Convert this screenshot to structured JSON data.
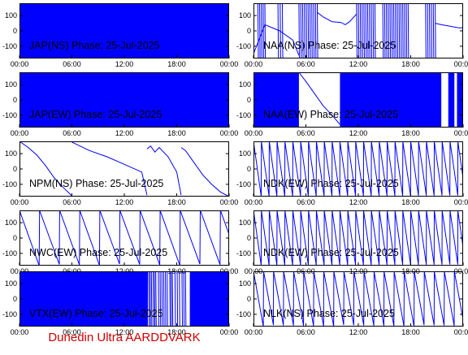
{
  "footer": "Dunedin Ultra AARDDVARK",
  "colors": {
    "trace": "#0000ff",
    "axis": "#000000",
    "footer": "#d00000"
  },
  "chart_data": [
    {
      "type": "line",
      "title": "JAP(NS) Phase: 25-Jul-2025",
      "x_ticks": [
        "00:00",
        "06:00",
        "12:00",
        "18:00",
        "00:00"
      ],
      "y_ticks": [
        "100",
        "0",
        "-100"
      ],
      "xlim_hours": [
        0,
        24
      ],
      "ylim": [
        -180,
        180
      ],
      "fill": "solid",
      "series": [
        {
          "x": [
            0,
            24
          ],
          "y": [
            0,
            0
          ]
        }
      ]
    },
    {
      "type": "line",
      "title": "NAA(NS) Phase: 25-Jul-2025",
      "x_ticks": [
        "00:00",
        "06:00",
        "12:00",
        "18:00",
        "00:00"
      ],
      "y_ticks": [
        "100",
        "0",
        "-100"
      ],
      "xlim_hours": [
        0,
        24
      ],
      "ylim": [
        -180,
        180
      ],
      "bands": [
        [
          0.5,
          1.3
        ],
        [
          2.8,
          3.3
        ],
        [
          5.2,
          7.3
        ],
        [
          11.8,
          13.9
        ],
        [
          14.8,
          17.7
        ],
        [
          19.7,
          20.8
        ]
      ],
      "series": [
        {
          "x": [
            0,
            1.3,
            3,
            4.5,
            5.2
          ],
          "y": [
            -150,
            40,
            0,
            -60,
            -160
          ]
        },
        {
          "x": [
            7.3,
            8,
            9,
            10,
            10.5,
            11,
            11.8
          ],
          "y": [
            120,
            90,
            60,
            55,
            40,
            60,
            110
          ]
        },
        {
          "x": [
            20.8,
            21.5,
            22.5,
            23.5,
            24
          ],
          "y": [
            50,
            40,
            30,
            20,
            20
          ]
        }
      ]
    },
    {
      "type": "line",
      "title": "JAP(EW) Phase: 25-Jul-2025",
      "x_ticks": [
        "00:00",
        "06:00",
        "12:00",
        "18:00",
        "00:00"
      ],
      "y_ticks": [
        "100",
        "0",
        "-100"
      ],
      "xlim_hours": [
        0,
        24
      ],
      "ylim": [
        -180,
        180
      ],
      "fill": "solid",
      "series": [
        {
          "x": [
            0,
            24
          ],
          "y": [
            0,
            0
          ]
        }
      ]
    },
    {
      "type": "line",
      "title": "NAA(EW) Phase: 25-Jul-2025",
      "x_ticks": [
        "00:00",
        "06:00",
        "12:00",
        "18:00",
        "00:00"
      ],
      "y_ticks": [
        "100",
        "0",
        "-100"
      ],
      "xlim_hours": [
        0,
        24
      ],
      "ylim": [
        -180,
        180
      ],
      "fill_ranges": [
        [
          0,
          5.2
        ],
        [
          9.9,
          21.5
        ],
        [
          22.3,
          23.0
        ],
        [
          23.3,
          24
        ]
      ],
      "series": [
        {
          "x": [
            5.2,
            6,
            7,
            8,
            9,
            9.9
          ],
          "y": [
            180,
            120,
            40,
            -40,
            -100,
            -160
          ]
        }
      ]
    },
    {
      "type": "line",
      "title": "NPM(NS) Phase: 25-Jul-2025",
      "x_ticks": [
        "00:00",
        "06:00",
        "12:00",
        "18:00",
        "00:00"
      ],
      "y_ticks": [
        "100",
        "0",
        "-100"
      ],
      "xlim_hours": [
        0,
        24
      ],
      "ylim": [
        -180,
        180
      ],
      "series": [
        {
          "x": [
            0,
            1,
            2,
            3,
            4,
            5,
            6
          ],
          "y": [
            180,
            140,
            90,
            20,
            -60,
            -120,
            -175
          ]
        },
        {
          "x": [
            6,
            8,
            10,
            12,
            14,
            14.6
          ],
          "y": [
            175,
            120,
            80,
            30,
            -20,
            -170
          ]
        },
        {
          "x": [
            14.6,
            15,
            15.5,
            16,
            17,
            18,
            18.5
          ],
          "y": [
            130,
            150,
            110,
            140,
            80,
            -20,
            -170
          ]
        },
        {
          "x": [
            18.5,
            19,
            20,
            21,
            22,
            23,
            24
          ],
          "y": [
            140,
            120,
            40,
            -40,
            -100,
            -150,
            -180
          ]
        }
      ]
    },
    {
      "type": "line",
      "title": "NDK(EW) Phase: 25-Jul-2025",
      "x_ticks": [
        "00:00",
        "06:00",
        "12:00",
        "18:00",
        "00:00"
      ],
      "y_ticks": [
        "100",
        "0",
        "-100"
      ],
      "xlim_hours": [
        0,
        24
      ],
      "ylim": [
        -180,
        180
      ],
      "sawtooth_period_hours": 0.9,
      "series": []
    },
    {
      "type": "line",
      "title": "NWC(EW) Phase: 25-Jul-2025",
      "x_ticks": [
        "00:00",
        "06:00",
        "12:00",
        "18:00",
        "00:00"
      ],
      "y_ticks": [
        "100",
        "0",
        "-100"
      ],
      "xlim_hours": [
        0,
        24
      ],
      "ylim": [
        -180,
        180
      ],
      "sawtooth_period_hours": 2.3,
      "series": []
    },
    {
      "type": "line",
      "title": "NDK(EW) Phase: 25-Jul-2025",
      "x_ticks": [
        "00:00",
        "06:00",
        "12:00",
        "18:00",
        "00:00"
      ],
      "y_ticks": [
        "100",
        "0",
        "-100"
      ],
      "xlim_hours": [
        0,
        24
      ],
      "ylim": [
        -180,
        180
      ],
      "sawtooth_period_hours": 0.9,
      "series": []
    },
    {
      "type": "line",
      "title": "VTX(EW) Phase: 25-Jul-2025",
      "x_ticks": [
        "00:00",
        "06:00",
        "12:00",
        "18:00",
        "00:00"
      ],
      "y_ticks": [
        "100",
        "0",
        "-100"
      ],
      "xlim_hours": [
        0,
        24
      ],
      "ylim": [
        -180,
        180
      ],
      "fill_ranges": [
        [
          0,
          14.7
        ],
        [
          19.5,
          24
        ]
      ],
      "bands": [
        [
          14.8,
          15.1
        ],
        [
          15.3,
          15.6
        ],
        [
          15.9,
          16.3
        ],
        [
          16.5,
          16.9
        ],
        [
          17.2,
          17.5
        ],
        [
          17.8,
          18.3
        ],
        [
          18.6,
          19.0
        ]
      ],
      "series": []
    },
    {
      "type": "line",
      "title": "NLK(NS) Phase: 25-Jul-2025",
      "x_ticks": [
        "00:00",
        "06:00",
        "12:00",
        "18:00",
        "00:00"
      ],
      "y_ticks": [
        "100",
        "0",
        "-100"
      ],
      "xlim_hours": [
        0,
        24
      ],
      "ylim": [
        -180,
        180
      ],
      "sawtooth_period_hours": 1.15,
      "series": []
    }
  ]
}
